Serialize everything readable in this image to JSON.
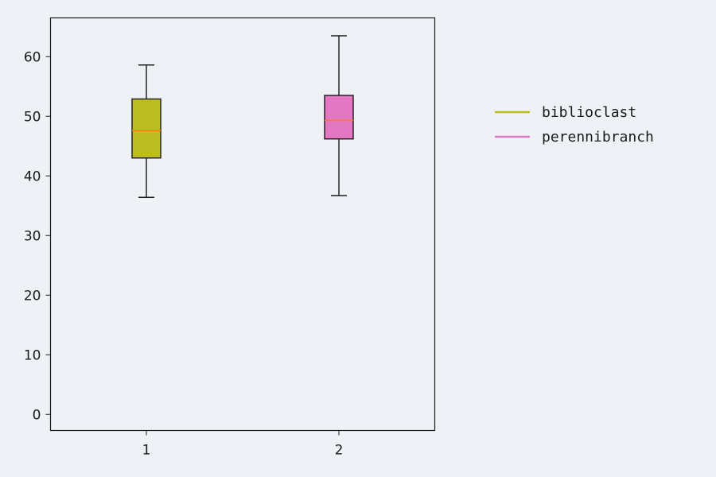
{
  "chart_data": {
    "type": "box",
    "title": "",
    "xlabel": "",
    "ylabel": "",
    "ylim": [
      -2.7,
      66.5
    ],
    "yticks": [
      0,
      10,
      20,
      30,
      40,
      50,
      60
    ],
    "categories": [
      "1",
      "2"
    ],
    "grid": false,
    "legend_position": "right",
    "median_color": "#ff7f0e",
    "series": [
      {
        "name": "biblioclast",
        "color": "#bcbd22",
        "whisker_low": 36.4,
        "q1": 43.0,
        "median": 47.6,
        "q3": 52.9,
        "whisker_high": 58.6
      },
      {
        "name": "perennibranch",
        "color": "#e377c2",
        "whisker_low": 36.7,
        "q1": 46.2,
        "median": 49.3,
        "q3": 53.5,
        "whisker_high": 63.5
      }
    ]
  }
}
